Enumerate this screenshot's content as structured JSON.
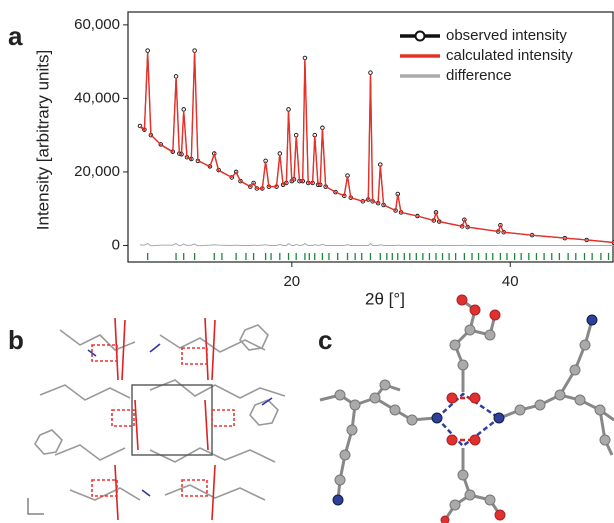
{
  "chart_data": {
    "type": "line",
    "panel_labels": [
      "a",
      "b",
      "c"
    ],
    "ylabel": "Intensity [arbitrary units]",
    "xlabel": "2θ [°]",
    "xlim": [
      5,
      49.5
    ],
    "ylim": [
      -4500,
      63500
    ],
    "xticks": [
      20,
      40
    ],
    "yticks": [
      {
        "value": 0,
        "label": "0"
      },
      {
        "value": 20000,
        "label": "20,000"
      },
      {
        "value": 40000,
        "label": "40,000"
      },
      {
        "value": 60000,
        "label": "60,000"
      }
    ],
    "legend": "upper right",
    "x": [
      6.1,
      6.5,
      6.8,
      7.1,
      8,
      9.1,
      9.4,
      9.7,
      9.9,
      10.1,
      10.4,
      10.8,
      11.1,
      11.4,
      12.5,
      12.9,
      13.3,
      14.5,
      14.9,
      15.3,
      16.2,
      16.5,
      16.8,
      17.3,
      17.6,
      17.9,
      18.6,
      18.9,
      19.2,
      19.5,
      19.7,
      20.0,
      20.2,
      20.4,
      20.7,
      21.0,
      21.2,
      21.5,
      21.9,
      22.1,
      22.4,
      22.6,
      22.8,
      23.1,
      24.0,
      24.8,
      25.1,
      25.4,
      26.5,
      27.0,
      27.2,
      27.4,
      27.9,
      28.1,
      28.4,
      29.5,
      29.7,
      30.0,
      31.5,
      33.0,
      33.2,
      33.5,
      35.6,
      35.8,
      36.1,
      38.9,
      39.1,
      39.4,
      42,
      45,
      47,
      49.5
    ],
    "series": [
      {
        "name": "observed intensity",
        "color": "#111111",
        "values": [
          32500,
          31500,
          53000,
          30000,
          27500,
          25500,
          46000,
          25000,
          24800,
          37000,
          24000,
          23500,
          53000,
          23000,
          21500,
          25000,
          20500,
          18500,
          20000,
          17500,
          16000,
          17000,
          15500,
          15500,
          23000,
          16000,
          16000,
          25000,
          16500,
          17000,
          37000,
          17500,
          18000,
          30000,
          17500,
          17500,
          51000,
          17000,
          17000,
          30000,
          16500,
          16500,
          32000,
          16000,
          14500,
          13500,
          19000,
          13000,
          12000,
          12500,
          47000,
          12000,
          11500,
          22000,
          11000,
          9500,
          14000,
          9000,
          8000,
          6800,
          9000,
          6500,
          5200,
          7000,
          5000,
          3800,
          5500,
          3600,
          2800,
          2000,
          1500,
          800
        ]
      },
      {
        "name": "calculated intensity",
        "color": "#e8302a",
        "values": [
          32300,
          31400,
          52500,
          30100,
          27400,
          25400,
          45500,
          25100,
          24700,
          36600,
          24000,
          23400,
          52600,
          23100,
          21400,
          24800,
          20400,
          18500,
          19900,
          17500,
          16000,
          16900,
          15500,
          15400,
          22800,
          16000,
          16000,
          24700,
          16500,
          17000,
          36500,
          17500,
          18000,
          29700,
          17500,
          17400,
          50500,
          17000,
          17000,
          29800,
          16500,
          16400,
          31700,
          16000,
          14500,
          13500,
          18800,
          13000,
          12000,
          12500,
          46500,
          12000,
          11500,
          21800,
          11000,
          9500,
          13900,
          9000,
          8000,
          6800,
          8900,
          6500,
          5200,
          6900,
          5000,
          3800,
          5400,
          3600,
          2800,
          2000,
          1500,
          800
        ]
      },
      {
        "name": "difference",
        "color": "#aaaaaa",
        "values": [
          200,
          100,
          500,
          -100,
          100,
          100,
          500,
          -100,
          100,
          400,
          0,
          100,
          400,
          -100,
          100,
          200,
          100,
          0,
          100,
          0,
          0,
          100,
          0,
          100,
          200,
          0,
          0,
          300,
          0,
          0,
          500,
          0,
          0,
          300,
          0,
          100,
          500,
          0,
          0,
          200,
          0,
          100,
          300,
          0,
          0,
          0,
          200,
          0,
          0,
          0,
          500,
          0,
          0,
          200,
          0,
          0,
          100,
          0,
          0,
          0,
          100,
          0,
          0,
          100,
          0,
          0,
          100,
          0,
          0,
          0,
          0,
          0
        ]
      }
    ],
    "bragg_color": "#1a8a3a",
    "bragg_positions": [
      6.8,
      9.4,
      10.1,
      11.1,
      12.9,
      13.6,
      14.9,
      15.8,
      16.5,
      17.6,
      18.1,
      18.9,
      19.7,
      20.4,
      21.2,
      21.6,
      22.1,
      22.8,
      23.4,
      24.2,
      25.1,
      25.8,
      26.4,
      27.2,
      28.1,
      28.7,
      29.2,
      29.7,
      30.3,
      30.8,
      31.4,
      32.0,
      32.6,
      33.2,
      33.8,
      34.4,
      35.0,
      35.8,
      36.5,
      37.1,
      37.8,
      38.4,
      39.1,
      39.7,
      40.4,
      41.0,
      41.7,
      42.4,
      43.1,
      43.8,
      44.5,
      45.3,
      46.0,
      46.8,
      47.5,
      48.3,
      49.0
    ]
  }
}
